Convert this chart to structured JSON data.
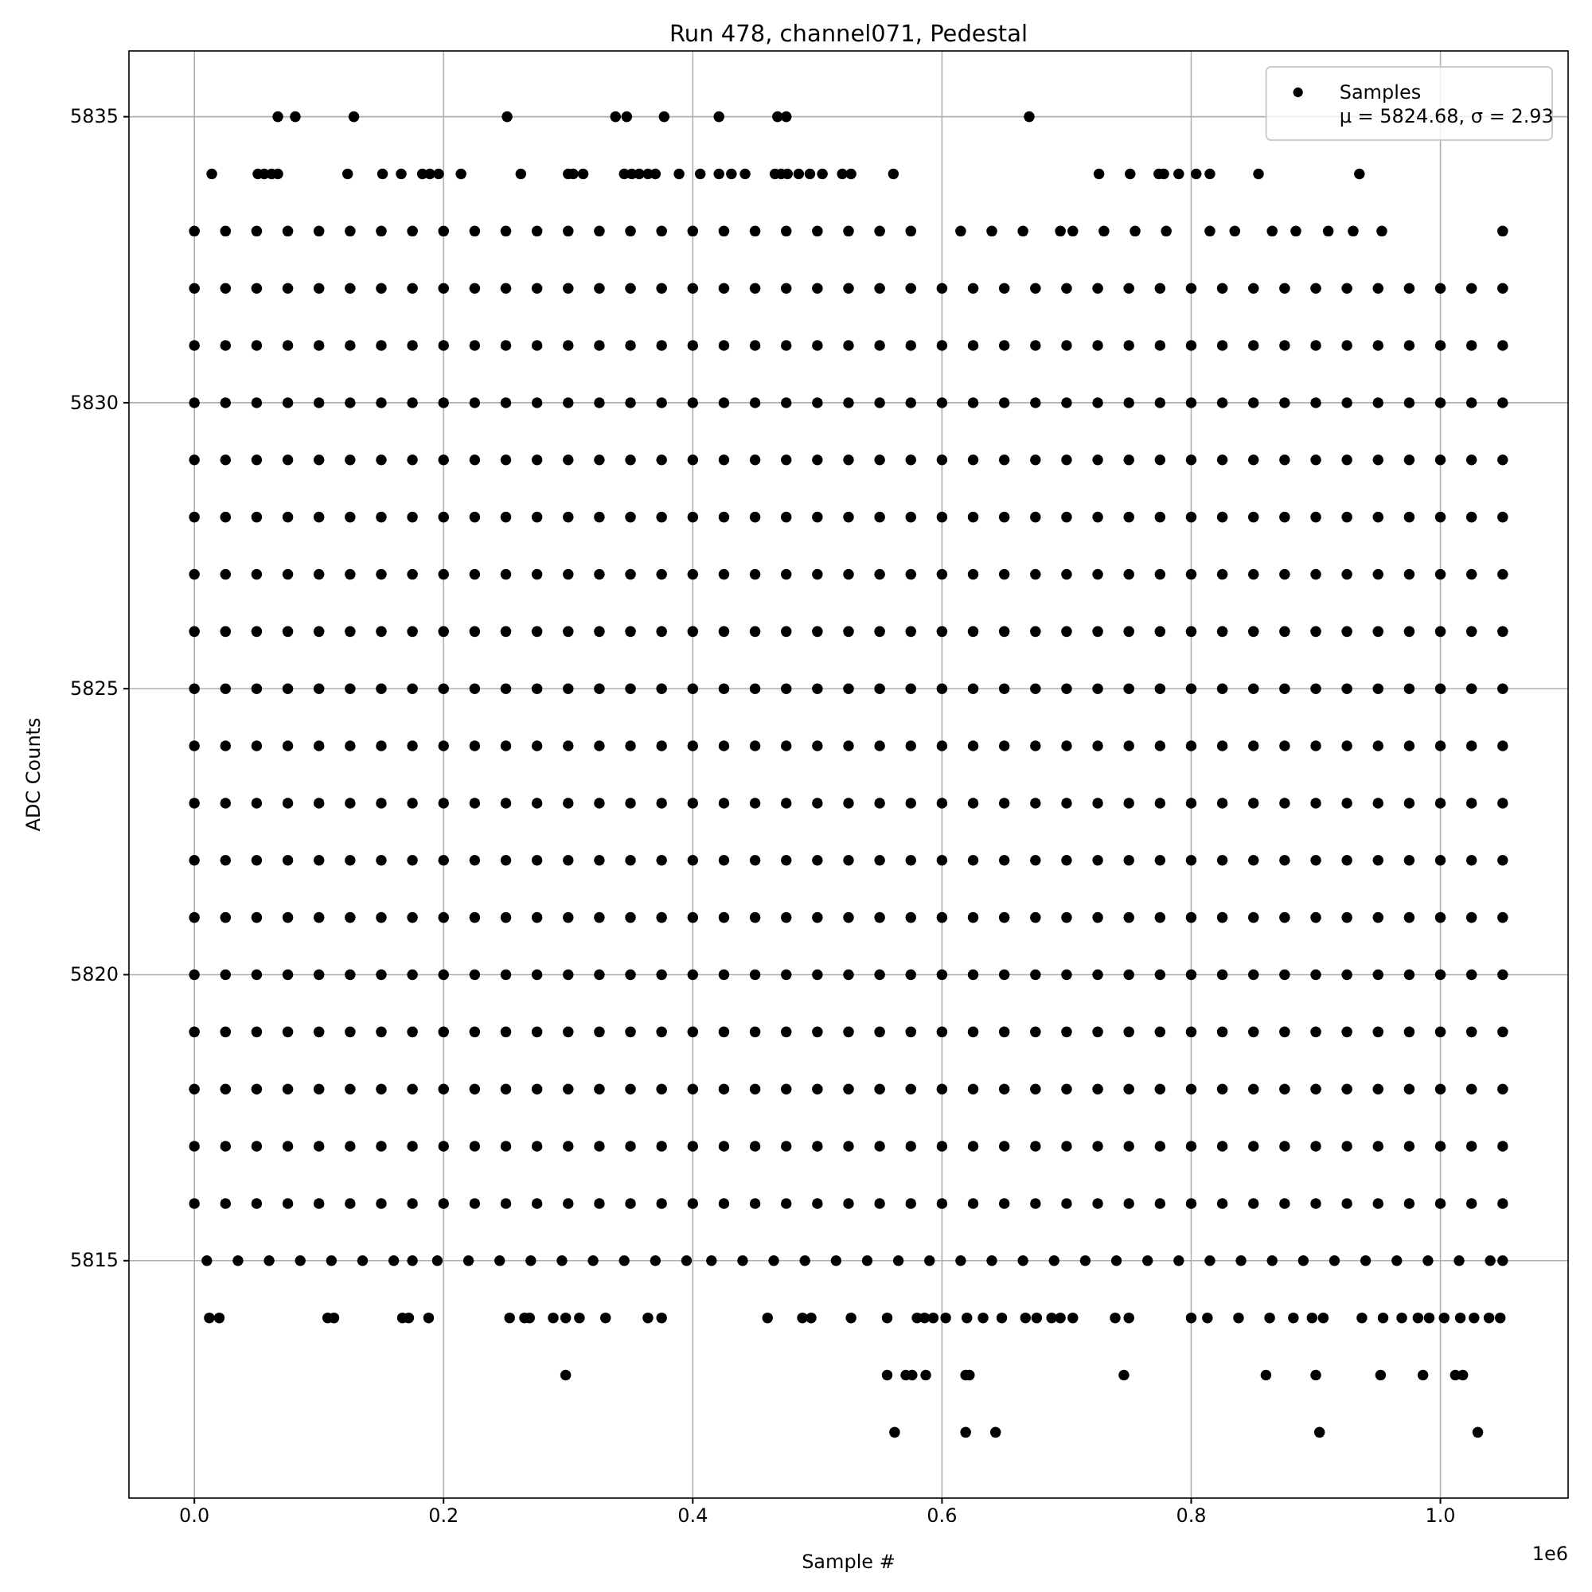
{
  "chart_data": {
    "type": "scatter",
    "title": "Run 478, channel071, Pedestal",
    "xlabel": "Sample #",
    "ylabel": "ADC Counts",
    "annotations": [
      "1e6"
    ],
    "xlim": [
      -0.0525,
      1.1025
    ],
    "ylim": [
      5810.85,
      5836.15
    ],
    "xticks": [
      {
        "value": 0,
        "label": "0.0"
      },
      0.2,
      0.4,
      0.6,
      0.8,
      {
        "value": 1,
        "label": "1.0"
      }
    ],
    "yticks": [
      5815,
      5820,
      5825,
      5830,
      5835
    ],
    "grid": true,
    "legend": "top right",
    "marker": "circle",
    "x": [
      0,
      0.025,
      0.05,
      0.075,
      0.1,
      0.125,
      0.15,
      0.175,
      0.2,
      0.225,
      0.25,
      0.275,
      0.3,
      0.325,
      0.35,
      0.375,
      0.4,
      0.425,
      0.45,
      0.475,
      0.5,
      0.525,
      0.55,
      0.575,
      0.6,
      0.625,
      0.65,
      0.675,
      0.7,
      0.725,
      0.75,
      0.775,
      0.8,
      0.825,
      0.85,
      0.875,
      0.9,
      0.925,
      0.95,
      0.975,
      1,
      1.025,
      1.05
    ],
    "series": [
      {
        "name": "Samples\nμ = 5824.68, σ = 2.93",
        "color": "#000000",
        "x": [
          0.067,
          0.081,
          0.128,
          0.251,
          0.338,
          0.347,
          0.377,
          0.421,
          0.468,
          0.475,
          0.67
        ],
        "values": [
          5835,
          5835,
          5835,
          5835,
          5835,
          5835,
          5835,
          5835,
          5835,
          5835,
          5835
        ]
      },
      {
        "color": "#000000",
        "x": [
          0.014,
          0.051,
          0.056,
          0.062,
          0.067,
          0.123,
          0.151,
          0.166,
          0.183,
          0.189,
          0.196,
          0.214,
          0.262,
          0.3,
          0.304,
          0.312,
          0.345,
          0.351,
          0.357,
          0.364,
          0.37,
          0.389,
          0.406,
          0.421,
          0.431,
          0.442,
          0.466,
          0.471,
          0.476,
          0.485,
          0.494,
          0.504,
          0.52,
          0.527,
          0.561,
          0.726,
          0.751,
          0.774,
          0.778,
          0.79,
          0.804,
          0.815,
          0.854,
          0.935
        ],
        "values": [
          5834,
          5834,
          5834,
          5834,
          5834,
          5834,
          5834,
          5834,
          5834,
          5834,
          5834,
          5834,
          5834,
          5834,
          5834,
          5834,
          5834,
          5834,
          5834,
          5834,
          5834,
          5834,
          5834,
          5834,
          5834,
          5834,
          5834,
          5834,
          5834,
          5834,
          5834,
          5834,
          5834,
          5834,
          5834,
          5834,
          5834,
          5834,
          5834,
          5834,
          5834,
          5834,
          5834,
          5834
        ]
      },
      {
        "color": "#000000",
        "x": [
          0,
          0.025,
          0.05,
          0.075,
          0.1,
          0.125,
          0.15,
          0.175,
          0.2,
          0.225,
          0.25,
          0.275,
          0.3,
          0.325,
          0.35,
          0.375,
          0.4,
          0.425,
          0.45,
          0.475,
          0.5,
          0.525,
          0.55,
          0.575,
          0.615,
          0.64,
          0.665,
          0.695,
          0.705,
          0.73,
          0.755,
          0.78,
          0.815,
          0.835,
          0.865,
          0.884,
          0.91,
          0.93,
          0.953,
          1.05
        ],
        "values": [
          5833,
          5833,
          5833,
          5833,
          5833,
          5833,
          5833,
          5833,
          5833,
          5833,
          5833,
          5833,
          5833,
          5833,
          5833,
          5833,
          5833,
          5833,
          5833,
          5833,
          5833,
          5833,
          5833,
          5833,
          5833,
          5833,
          5833,
          5833,
          5833,
          5833,
          5833,
          5833,
          5833,
          5833,
          5833,
          5833,
          5833,
          5833,
          5833,
          5833
        ]
      },
      {
        "color": "#000000",
        "values": [
          5832,
          5832,
          5832,
          5832,
          5832,
          5832,
          5832,
          5832,
          5832,
          5832,
          5832,
          5832,
          5832,
          5832,
          5832,
          5832,
          5832,
          5832,
          5832,
          5832,
          5832,
          5832,
          5832,
          5832,
          5832,
          5832,
          5832,
          5832,
          5832,
          5832,
          5832,
          5832,
          5832,
          5832,
          5832,
          5832,
          5832,
          5832,
          5832,
          5832,
          5832,
          5832,
          5832
        ]
      },
      {
        "color": "#000000",
        "values": [
          5831,
          5831,
          5831,
          5831,
          5831,
          5831,
          5831,
          5831,
          5831,
          5831,
          5831,
          5831,
          5831,
          5831,
          5831,
          5831,
          5831,
          5831,
          5831,
          5831,
          5831,
          5831,
          5831,
          5831,
          5831,
          5831,
          5831,
          5831,
          5831,
          5831,
          5831,
          5831,
          5831,
          5831,
          5831,
          5831,
          5831,
          5831,
          5831,
          5831,
          5831,
          5831,
          5831
        ]
      },
      {
        "color": "#000000",
        "values": [
          5830,
          5830,
          5830,
          5830,
          5830,
          5830,
          5830,
          5830,
          5830,
          5830,
          5830,
          5830,
          5830,
          5830,
          5830,
          5830,
          5830,
          5830,
          5830,
          5830,
          5830,
          5830,
          5830,
          5830,
          5830,
          5830,
          5830,
          5830,
          5830,
          5830,
          5830,
          5830,
          5830,
          5830,
          5830,
          5830,
          5830,
          5830,
          5830,
          5830,
          5830,
          5830,
          5830
        ]
      },
      {
        "color": "#000000",
        "values": [
          5829,
          5829,
          5829,
          5829,
          5829,
          5829,
          5829,
          5829,
          5829,
          5829,
          5829,
          5829,
          5829,
          5829,
          5829,
          5829,
          5829,
          5829,
          5829,
          5829,
          5829,
          5829,
          5829,
          5829,
          5829,
          5829,
          5829,
          5829,
          5829,
          5829,
          5829,
          5829,
          5829,
          5829,
          5829,
          5829,
          5829,
          5829,
          5829,
          5829,
          5829,
          5829,
          5829
        ]
      },
      {
        "color": "#000000",
        "values": [
          5828,
          5828,
          5828,
          5828,
          5828,
          5828,
          5828,
          5828,
          5828,
          5828,
          5828,
          5828,
          5828,
          5828,
          5828,
          5828,
          5828,
          5828,
          5828,
          5828,
          5828,
          5828,
          5828,
          5828,
          5828,
          5828,
          5828,
          5828,
          5828,
          5828,
          5828,
          5828,
          5828,
          5828,
          5828,
          5828,
          5828,
          5828,
          5828,
          5828,
          5828,
          5828,
          5828
        ]
      },
      {
        "color": "#000000",
        "values": [
          5827,
          5827,
          5827,
          5827,
          5827,
          5827,
          5827,
          5827,
          5827,
          5827,
          5827,
          5827,
          5827,
          5827,
          5827,
          5827,
          5827,
          5827,
          5827,
          5827,
          5827,
          5827,
          5827,
          5827,
          5827,
          5827,
          5827,
          5827,
          5827,
          5827,
          5827,
          5827,
          5827,
          5827,
          5827,
          5827,
          5827,
          5827,
          5827,
          5827,
          5827,
          5827,
          5827
        ]
      },
      {
        "color": "#000000",
        "values": [
          5826,
          5826,
          5826,
          5826,
          5826,
          5826,
          5826,
          5826,
          5826,
          5826,
          5826,
          5826,
          5826,
          5826,
          5826,
          5826,
          5826,
          5826,
          5826,
          5826,
          5826,
          5826,
          5826,
          5826,
          5826,
          5826,
          5826,
          5826,
          5826,
          5826,
          5826,
          5826,
          5826,
          5826,
          5826,
          5826,
          5826,
          5826,
          5826,
          5826,
          5826,
          5826,
          5826
        ]
      },
      {
        "color": "#000000",
        "values": [
          5825,
          5825,
          5825,
          5825,
          5825,
          5825,
          5825,
          5825,
          5825,
          5825,
          5825,
          5825,
          5825,
          5825,
          5825,
          5825,
          5825,
          5825,
          5825,
          5825,
          5825,
          5825,
          5825,
          5825,
          5825,
          5825,
          5825,
          5825,
          5825,
          5825,
          5825,
          5825,
          5825,
          5825,
          5825,
          5825,
          5825,
          5825,
          5825,
          5825,
          5825,
          5825,
          5825
        ]
      },
      {
        "color": "#000000",
        "values": [
          5824,
          5824,
          5824,
          5824,
          5824,
          5824,
          5824,
          5824,
          5824,
          5824,
          5824,
          5824,
          5824,
          5824,
          5824,
          5824,
          5824,
          5824,
          5824,
          5824,
          5824,
          5824,
          5824,
          5824,
          5824,
          5824,
          5824,
          5824,
          5824,
          5824,
          5824,
          5824,
          5824,
          5824,
          5824,
          5824,
          5824,
          5824,
          5824,
          5824,
          5824,
          5824,
          5824
        ]
      },
      {
        "color": "#000000",
        "values": [
          5823,
          5823,
          5823,
          5823,
          5823,
          5823,
          5823,
          5823,
          5823,
          5823,
          5823,
          5823,
          5823,
          5823,
          5823,
          5823,
          5823,
          5823,
          5823,
          5823,
          5823,
          5823,
          5823,
          5823,
          5823,
          5823,
          5823,
          5823,
          5823,
          5823,
          5823,
          5823,
          5823,
          5823,
          5823,
          5823,
          5823,
          5823,
          5823,
          5823,
          5823,
          5823,
          5823
        ]
      },
      {
        "color": "#000000",
        "values": [
          5822,
          5822,
          5822,
          5822,
          5822,
          5822,
          5822,
          5822,
          5822,
          5822,
          5822,
          5822,
          5822,
          5822,
          5822,
          5822,
          5822,
          5822,
          5822,
          5822,
          5822,
          5822,
          5822,
          5822,
          5822,
          5822,
          5822,
          5822,
          5822,
          5822,
          5822,
          5822,
          5822,
          5822,
          5822,
          5822,
          5822,
          5822,
          5822,
          5822,
          5822,
          5822,
          5822
        ]
      },
      {
        "color": "#000000",
        "values": [
          5821,
          5821,
          5821,
          5821,
          5821,
          5821,
          5821,
          5821,
          5821,
          5821,
          5821,
          5821,
          5821,
          5821,
          5821,
          5821,
          5821,
          5821,
          5821,
          5821,
          5821,
          5821,
          5821,
          5821,
          5821,
          5821,
          5821,
          5821,
          5821,
          5821,
          5821,
          5821,
          5821,
          5821,
          5821,
          5821,
          5821,
          5821,
          5821,
          5821,
          5821,
          5821,
          5821
        ]
      },
      {
        "color": "#000000",
        "values": [
          5820,
          5820,
          5820,
          5820,
          5820,
          5820,
          5820,
          5820,
          5820,
          5820,
          5820,
          5820,
          5820,
          5820,
          5820,
          5820,
          5820,
          5820,
          5820,
          5820,
          5820,
          5820,
          5820,
          5820,
          5820,
          5820,
          5820,
          5820,
          5820,
          5820,
          5820,
          5820,
          5820,
          5820,
          5820,
          5820,
          5820,
          5820,
          5820,
          5820,
          5820,
          5820,
          5820
        ]
      },
      {
        "color": "#000000",
        "values": [
          5819,
          5819,
          5819,
          5819,
          5819,
          5819,
          5819,
          5819,
          5819,
          5819,
          5819,
          5819,
          5819,
          5819,
          5819,
          5819,
          5819,
          5819,
          5819,
          5819,
          5819,
          5819,
          5819,
          5819,
          5819,
          5819,
          5819,
          5819,
          5819,
          5819,
          5819,
          5819,
          5819,
          5819,
          5819,
          5819,
          5819,
          5819,
          5819,
          5819,
          5819,
          5819,
          5819
        ]
      },
      {
        "color": "#000000",
        "values": [
          5818,
          5818,
          5818,
          5818,
          5818,
          5818,
          5818,
          5818,
          5818,
          5818,
          5818,
          5818,
          5818,
          5818,
          5818,
          5818,
          5818,
          5818,
          5818,
          5818,
          5818,
          5818,
          5818,
          5818,
          5818,
          5818,
          5818,
          5818,
          5818,
          5818,
          5818,
          5818,
          5818,
          5818,
          5818,
          5818,
          5818,
          5818,
          5818,
          5818,
          5818,
          5818,
          5818
        ]
      },
      {
        "color": "#000000",
        "values": [
          5817,
          5817,
          5817,
          5817,
          5817,
          5817,
          5817,
          5817,
          5817,
          5817,
          5817,
          5817,
          5817,
          5817,
          5817,
          5817,
          5817,
          5817,
          5817,
          5817,
          5817,
          5817,
          5817,
          5817,
          5817,
          5817,
          5817,
          5817,
          5817,
          5817,
          5817,
          5817,
          5817,
          5817,
          5817,
          5817,
          5817,
          5817,
          5817,
          5817,
          5817,
          5817,
          5817
        ]
      },
      {
        "color": "#000000",
        "values": [
          5816,
          5816,
          5816,
          5816,
          5816,
          5816,
          5816,
          5816,
          5816,
          5816,
          5816,
          5816,
          5816,
          5816,
          5816,
          5816,
          5816,
          5816,
          5816,
          5816,
          5816,
          5816,
          5816,
          5816,
          5816,
          5816,
          5816,
          5816,
          5816,
          5816,
          5816,
          5816,
          5816,
          5816,
          5816,
          5816,
          5816,
          5816,
          5816,
          5816,
          5816,
          5816,
          5816
        ]
      },
      {
        "color": "#000000",
        "x": [
          0.01,
          0.035,
          0.06,
          0.085,
          0.11,
          0.135,
          0.16,
          0.175,
          0.195,
          0.22,
          0.245,
          0.27,
          0.295,
          0.32,
          0.345,
          0.37,
          0.395,
          0.415,
          0.44,
          0.465,
          0.49,
          0.515,
          0.54,
          0.565,
          0.59,
          0.615,
          0.64,
          0.665,
          0.69,
          0.715,
          0.74,
          0.765,
          0.79,
          0.815,
          0.84,
          0.865,
          0.89,
          0.915,
          0.94,
          0.965,
          0.99,
          1.015,
          1.04,
          1.05
        ],
        "values": [
          5815,
          5815,
          5815,
          5815,
          5815,
          5815,
          5815,
          5815,
          5815,
          5815,
          5815,
          5815,
          5815,
          5815,
          5815,
          5815,
          5815,
          5815,
          5815,
          5815,
          5815,
          5815,
          5815,
          5815,
          5815,
          5815,
          5815,
          5815,
          5815,
          5815,
          5815,
          5815,
          5815,
          5815,
          5815,
          5815,
          5815,
          5815,
          5815,
          5815,
          5815,
          5815,
          5815,
          5815
        ]
      },
      {
        "color": "#000000",
        "x": [
          0.012,
          0.02,
          0.107,
          0.112,
          0.167,
          0.172,
          0.188,
          0.253,
          0.265,
          0.269,
          0.288,
          0.298,
          0.309,
          0.33,
          0.364,
          0.375,
          0.46,
          0.488,
          0.495,
          0.527,
          0.556,
          0.58,
          0.586,
          0.593,
          0.603,
          0.62,
          0.633,
          0.648,
          0.667,
          0.676,
          0.688,
          0.695,
          0.705,
          0.739,
          0.75,
          0.8,
          0.813,
          0.838,
          0.863,
          0.882,
          0.897,
          0.906,
          0.937,
          0.954,
          0.969,
          0.982,
          0.991,
          1.003,
          1.016,
          1.027,
          1.039,
          1.048
        ],
        "values": [
          5814,
          5814,
          5814,
          5814,
          5814,
          5814,
          5814,
          5814,
          5814,
          5814,
          5814,
          5814,
          5814,
          5814,
          5814,
          5814,
          5814,
          5814,
          5814,
          5814,
          5814,
          5814,
          5814,
          5814,
          5814,
          5814,
          5814,
          5814,
          5814,
          5814,
          5814,
          5814,
          5814,
          5814,
          5814,
          5814,
          5814,
          5814,
          5814,
          5814,
          5814,
          5814,
          5814,
          5814,
          5814,
          5814,
          5814,
          5814,
          5814,
          5814,
          5814,
          5814
        ]
      },
      {
        "color": "#000000",
        "x": [
          0.298,
          0.556,
          0.571,
          0.576,
          0.587,
          0.619,
          0.622,
          0.746,
          0.86,
          0.9,
          0.952,
          0.986,
          1.012,
          1.018
        ],
        "values": [
          5813,
          5813,
          5813,
          5813,
          5813,
          5813,
          5813,
          5813,
          5813,
          5813,
          5813,
          5813,
          5813,
          5813
        ]
      },
      {
        "color": "#000000",
        "x": [
          0.562,
          0.619,
          0.643,
          0.903,
          1.03
        ],
        "values": [
          5812,
          5812,
          5812,
          5812,
          5812
        ]
      }
    ]
  }
}
